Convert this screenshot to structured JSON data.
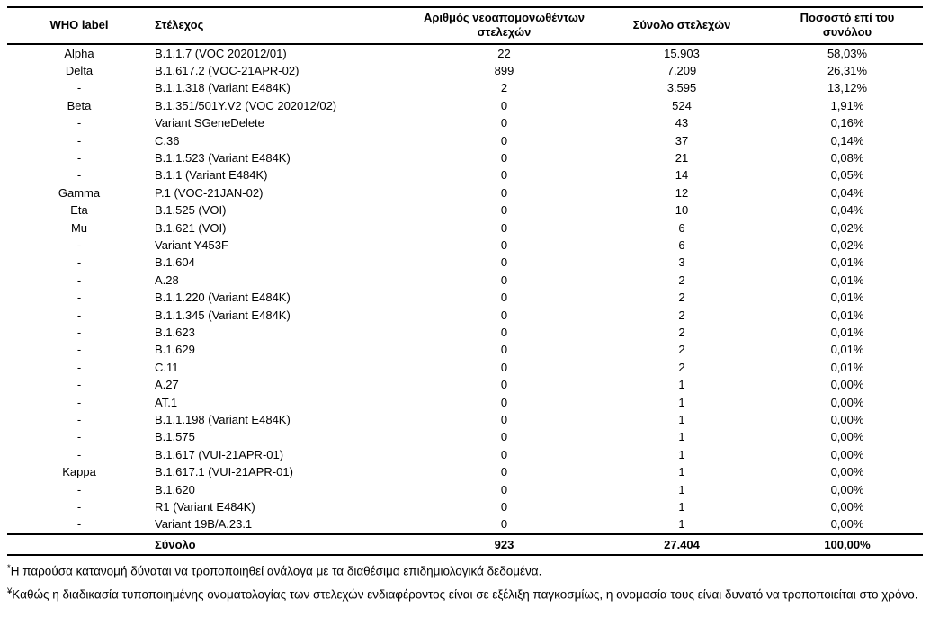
{
  "table": {
    "headers": {
      "who": "WHO label",
      "strain": "Στέλεχος",
      "new_isolates": "Αριθμός νεοαπομονωθέντων στελεχών",
      "total": "Σύνολο στελεχών",
      "percent": "Ποσοστό επί του συνόλου"
    },
    "rows": [
      {
        "who": "Alpha",
        "strain": "B.1.1.7 (VOC 202012/01)",
        "new_isolates": "22",
        "total": "15.903",
        "percent": "58,03%"
      },
      {
        "who": "Delta",
        "strain": "B.1.617.2 (VOC-21APR-02)",
        "new_isolates": "899",
        "total": "7.209",
        "percent": "26,31%"
      },
      {
        "who": "-",
        "strain": "B.1.1.318 (Variant E484K)",
        "new_isolates": "2",
        "total": "3.595",
        "percent": "13,12%"
      },
      {
        "who": "Beta",
        "strain": "B.1.351/501Y.V2 (VOC 202012/02)",
        "new_isolates": "0",
        "total": "524",
        "percent": "1,91%"
      },
      {
        "who": "-",
        "strain": "Variant SGeneDelete",
        "new_isolates": "0",
        "total": "43",
        "percent": "0,16%"
      },
      {
        "who": "-",
        "strain": "C.36",
        "new_isolates": "0",
        "total": "37",
        "percent": "0,14%"
      },
      {
        "who": "-",
        "strain": "B.1.1.523 (Variant E484K)",
        "new_isolates": "0",
        "total": "21",
        "percent": "0,08%"
      },
      {
        "who": "-",
        "strain": "B.1.1 (Variant E484K)",
        "new_isolates": "0",
        "total": "14",
        "percent": "0,05%"
      },
      {
        "who": "Gamma",
        "strain": "P.1 (VOC-21JAN-02)",
        "new_isolates": "0",
        "total": "12",
        "percent": "0,04%"
      },
      {
        "who": "Eta",
        "strain": "B.1.525 (VOI)",
        "new_isolates": "0",
        "total": "10",
        "percent": "0,04%"
      },
      {
        "who": "Mu",
        "strain": "B.1.621 (VOI)",
        "new_isolates": "0",
        "total": "6",
        "percent": "0,02%"
      },
      {
        "who": "-",
        "strain": "Variant Y453F",
        "new_isolates": "0",
        "total": "6",
        "percent": "0,02%"
      },
      {
        "who": "-",
        "strain": "B.1.604",
        "new_isolates": "0",
        "total": "3",
        "percent": "0,01%"
      },
      {
        "who": "-",
        "strain": "A.28",
        "new_isolates": "0",
        "total": "2",
        "percent": "0,01%"
      },
      {
        "who": "-",
        "strain": "B.1.1.220 (Variant E484K)",
        "new_isolates": "0",
        "total": "2",
        "percent": "0,01%"
      },
      {
        "who": "-",
        "strain": "B.1.1.345 (Variant E484K)",
        "new_isolates": "0",
        "total": "2",
        "percent": "0,01%"
      },
      {
        "who": "-",
        "strain": "B.1.623",
        "new_isolates": "0",
        "total": "2",
        "percent": "0,01%"
      },
      {
        "who": "-",
        "strain": "B.1.629",
        "new_isolates": "0",
        "total": "2",
        "percent": "0,01%"
      },
      {
        "who": "-",
        "strain": "C.11",
        "new_isolates": "0",
        "total": "2",
        "percent": "0,01%"
      },
      {
        "who": "-",
        "strain": "A.27",
        "new_isolates": "0",
        "total": "1",
        "percent": "0,00%"
      },
      {
        "who": "-",
        "strain": "AT.1",
        "new_isolates": "0",
        "total": "1",
        "percent": "0,00%"
      },
      {
        "who": "-",
        "strain": "B.1.1.198 (Variant E484K)",
        "new_isolates": "0",
        "total": "1",
        "percent": "0,00%"
      },
      {
        "who": "-",
        "strain": "B.1.575",
        "new_isolates": "0",
        "total": "1",
        "percent": "0,00%"
      },
      {
        "who": "-",
        "strain": "B.1.617 (VUI-21APR-01)",
        "new_isolates": "0",
        "total": "1",
        "percent": "0,00%"
      },
      {
        "who": "Kappa",
        "strain": "B.1.617.1 (VUI-21APR-01)",
        "new_isolates": "0",
        "total": "1",
        "percent": "0,00%"
      },
      {
        "who": "-",
        "strain": "B.1.620",
        "new_isolates": "0",
        "total": "1",
        "percent": "0,00%"
      },
      {
        "who": "-",
        "strain": "R1 (Variant E484K)",
        "new_isolates": "0",
        "total": "1",
        "percent": "0,00%"
      },
      {
        "who": "-",
        "strain": "Variant 19B/A.23.1",
        "new_isolates": "0",
        "total": "1",
        "percent": "0,00%"
      }
    ],
    "total_row": {
      "who": "",
      "label": "Σύνολο",
      "new_isolates": "923",
      "total": "27.404",
      "percent": "100,00%"
    }
  },
  "footnotes": [
    {
      "marker": "*",
      "text": "Η παρούσα κατανομή δύναται να τροποποιηθεί ανάλογα με τα διαθέσιμα επιδημιολογικά δεδομένα."
    },
    {
      "marker": "¥",
      "text": "Καθώς η διαδικασία τυποποιημένης ονοματολογίας των στελεχών ενδιαφέροντος είναι σε εξέλιξη παγκοσμίως, η ονομασία τους είναι δυνατό να τροποποιείται στο χρόνο."
    }
  ]
}
